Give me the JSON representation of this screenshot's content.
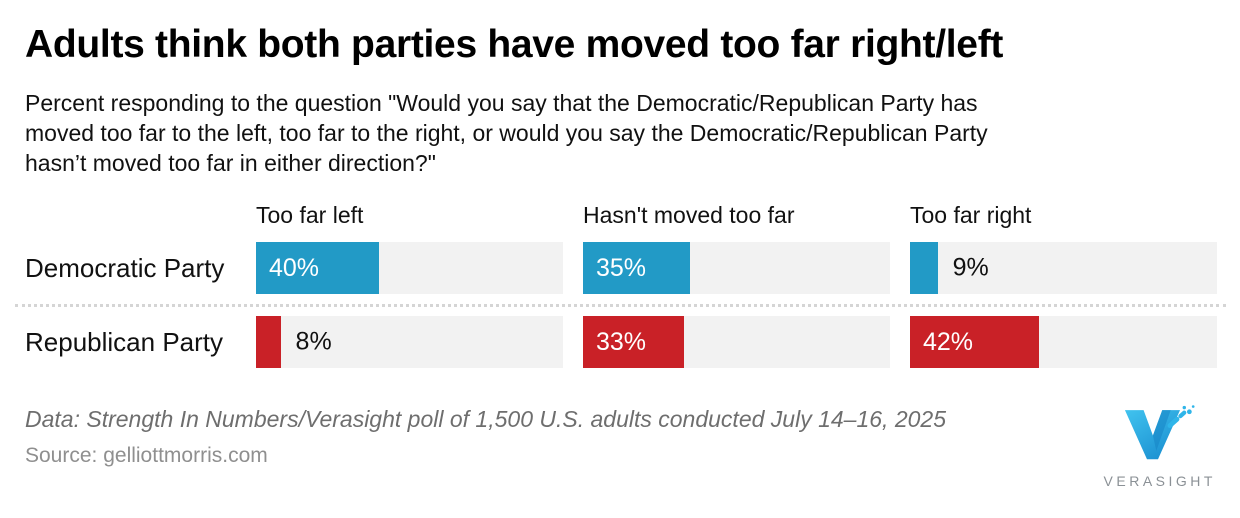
{
  "title": "Adults think both parties have moved too far right/left",
  "subtitle_lines": [
    "Percent responding to the question \"Would you say that the Democratic/Republican Party has",
    "moved too far to the left, too far to the right, or would you say the Democratic/Republican Party",
    "hasn’t moved too far in either direction?\""
  ],
  "chart_data": {
    "type": "bar",
    "orientation": "horizontal",
    "columns": [
      "Too far left",
      "Hasn't moved too far",
      "Too far right"
    ],
    "rows": [
      {
        "label": "Democratic Party",
        "color": "#229ac6",
        "cells": [
          {
            "value": 40,
            "text": "40%"
          },
          {
            "value": 35,
            "text": "35%"
          },
          {
            "value": 9,
            "text": "9%"
          }
        ]
      },
      {
        "label": "Republican Party",
        "color": "#c92127",
        "cells": [
          {
            "value": 8,
            "text": "8%"
          },
          {
            "value": 33,
            "text": "33%"
          },
          {
            "value": 42,
            "text": "42%"
          }
        ]
      }
    ],
    "value_scale_max": 100,
    "value_suffix": "%",
    "track_color": "#f2f2f2",
    "grid": "off",
    "legend": "none"
  },
  "footer": {
    "data_note": "Data: Strength In Numbers/Verasight poll of 1,500 U.S. adults conducted July 14–16, 2025",
    "source": "Source: gelliottmorris.com"
  },
  "logo": {
    "text": "VERASIGHT",
    "accent_color": "#2fb5e9",
    "text_color": "#8b9196"
  }
}
